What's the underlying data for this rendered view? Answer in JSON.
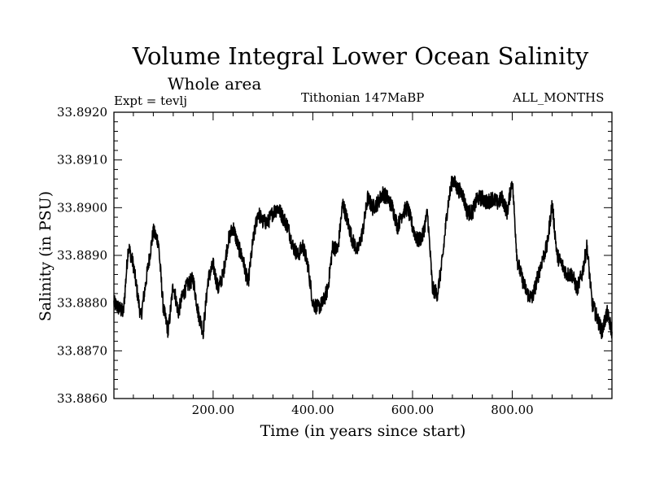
{
  "chart_data": {
    "type": "line",
    "title": "Volume Integral Lower Ocean Salinity",
    "subtitle": "Whole area",
    "annotations": {
      "experiment": "Expt = tevlj",
      "period": "Tithonian 147MaBP",
      "months": "ALL_MONTHS"
    },
    "xlabel": "Time (in years since start)",
    "ylabel": "Salinity (in PSU)",
    "xlim": [
      1,
      1000
    ],
    "ylim": [
      33.886,
      33.892
    ],
    "xticks": [
      200,
      400,
      600,
      800
    ],
    "xtick_labels": [
      "200.00",
      "400.00",
      "600.00",
      "800.00"
    ],
    "yticks": [
      33.886,
      33.887,
      33.888,
      33.889,
      33.89,
      33.891,
      33.892
    ],
    "ytick_labels": [
      "33.8860",
      "33.8870",
      "33.8880",
      "33.8890",
      "33.8900",
      "33.8910",
      "33.8920"
    ],
    "grid": false,
    "series": [
      {
        "name": "salinity",
        "color": "#000000",
        "x": [
          1,
          20,
          30,
          40,
          55,
          70,
          80,
          90,
          100,
          110,
          120,
          130,
          140,
          150,
          160,
          170,
          180,
          190,
          200,
          210,
          220,
          230,
          240,
          250,
          260,
          270,
          280,
          290,
          300,
          310,
          320,
          330,
          340,
          350,
          360,
          370,
          380,
          390,
          400,
          410,
          420,
          430,
          440,
          450,
          460,
          470,
          480,
          490,
          500,
          510,
          520,
          530,
          540,
          550,
          560,
          570,
          580,
          590,
          600,
          610,
          620,
          630,
          640,
          650,
          660,
          670,
          680,
          690,
          700,
          710,
          720,
          730,
          740,
          750,
          760,
          770,
          780,
          790,
          800,
          810,
          820,
          830,
          840,
          850,
          860,
          870,
          880,
          890,
          900,
          910,
          920,
          930,
          940,
          950,
          960,
          970,
          980,
          990,
          1000
        ],
        "values": [
          33.888,
          33.8878,
          33.8892,
          33.8888,
          33.8877,
          33.8888,
          33.8895,
          33.8893,
          33.8879,
          33.8874,
          33.8884,
          33.8878,
          33.8882,
          33.8884,
          33.8885,
          33.8878,
          33.8874,
          33.8885,
          33.8888,
          33.8883,
          33.8886,
          33.8893,
          33.8896,
          33.8892,
          33.8889,
          33.8884,
          33.8893,
          33.8899,
          33.8897,
          33.8897,
          33.8899,
          33.89,
          33.8898,
          33.8896,
          33.8892,
          33.889,
          33.8892,
          33.8888,
          33.888,
          33.8879,
          33.888,
          33.8883,
          33.8892,
          33.8891,
          33.8901,
          33.8897,
          33.8893,
          33.8891,
          33.8895,
          33.8902,
          33.89,
          33.8901,
          33.8903,
          33.8902,
          33.89,
          33.8896,
          33.8899,
          33.89,
          33.8896,
          33.8893,
          33.8894,
          33.8899,
          33.8883,
          33.8882,
          33.8889,
          33.89,
          33.8906,
          33.8904,
          33.8903,
          33.8899,
          33.8899,
          33.8902,
          33.8902,
          33.8901,
          33.8902,
          33.8901,
          33.8902,
          33.8899,
          33.8906,
          33.8889,
          33.8885,
          33.8882,
          33.8881,
          33.8885,
          33.8889,
          33.8892,
          33.8901,
          33.889,
          33.8888,
          33.8886,
          33.8886,
          33.8883,
          33.8886,
          33.8892,
          33.888,
          33.8877,
          33.8874,
          33.8878,
          33.8874
        ]
      }
    ]
  }
}
